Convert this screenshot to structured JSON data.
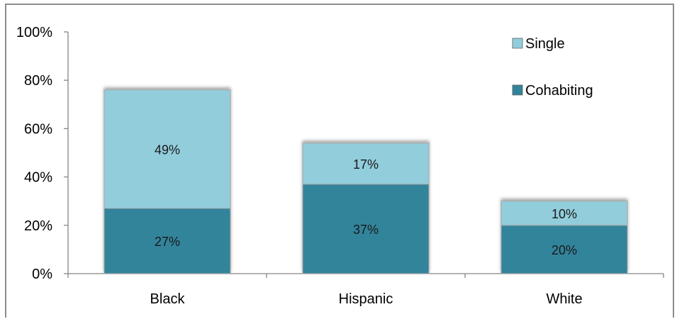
{
  "chart_data": {
    "type": "bar",
    "stacked": true,
    "categories": [
      "Black",
      "Hispanic",
      "White"
    ],
    "series": [
      {
        "name": "Cohabiting",
        "values": [
          27,
          37,
          20
        ],
        "labels": [
          "27%",
          "37%",
          "20%"
        ],
        "color": "#31849b"
      },
      {
        "name": "Single",
        "values": [
          49,
          17,
          10
        ],
        "labels": [
          "49%",
          "17%",
          "10%"
        ],
        "color": "#92cddc"
      }
    ],
    "ylim": [
      0,
      100
    ],
    "yticks": [
      0,
      20,
      40,
      60,
      80,
      100
    ],
    "ytick_labels": [
      "0%",
      "20%",
      "40%",
      "60%",
      "80%",
      "100%"
    ],
    "grid": false,
    "legend_position": "top-right",
    "title": "",
    "xlabel": "",
    "ylabel": ""
  }
}
